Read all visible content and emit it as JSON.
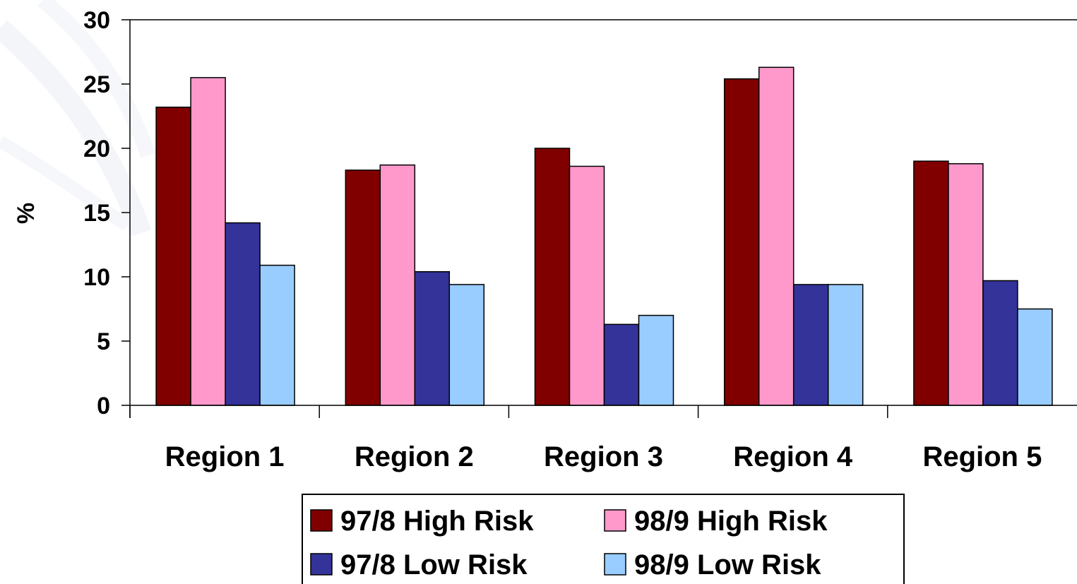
{
  "chart_data": {
    "type": "bar",
    "title": "",
    "xlabel": "",
    "ylabel": "%",
    "ylim": [
      0,
      30
    ],
    "yticks": [
      "0",
      "5",
      "10",
      "15",
      "20",
      "25",
      "30"
    ],
    "categories": [
      "Region 1",
      "Region 2",
      "Region 3",
      "Region 4",
      "Region 5"
    ],
    "series": [
      {
        "name": "97/8 High Risk",
        "color": "#800000",
        "values": [
          23.2,
          18.3,
          20.0,
          25.4,
          19.0
        ]
      },
      {
        "name": "98/9 High Risk",
        "color": "#ff99cc",
        "values": [
          25.5,
          18.7,
          18.6,
          26.3,
          18.8
        ]
      },
      {
        "name": "97/8 Low Risk",
        "color": "#333399",
        "values": [
          14.2,
          10.4,
          6.3,
          9.4,
          9.7
        ]
      },
      {
        "name": "98/9 Low Risk",
        "color": "#99ccff",
        "values": [
          10.9,
          9.4,
          7.0,
          9.4,
          7.5
        ]
      }
    ],
    "grid": false,
    "legend_position": "bottom"
  }
}
